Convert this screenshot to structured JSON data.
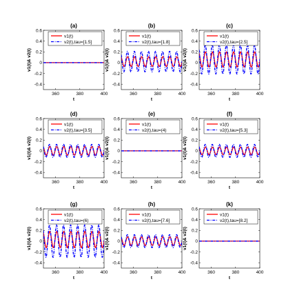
{
  "figure": {
    "colors": {
      "v1": "#ff0000",
      "v2": "#0000ff",
      "axis": "#000000"
    }
  },
  "chart_data": [
    {
      "type": "line",
      "title": "(a)",
      "xlabel": "t",
      "ylabel": "v1(t)& v2(t)",
      "xlim": [
        350,
        400
      ],
      "ylim": [
        -0.5,
        0.6
      ],
      "xticks": [
        360,
        380,
        400
      ],
      "yticks": [
        -0.4,
        -0.2,
        0,
        0.2,
        0.4,
        0.6
      ],
      "legend_position": "top-right",
      "series": [
        {
          "name": "v1(t)",
          "style": "solid",
          "color": "#ff0000",
          "amplitude": 0,
          "offset": 0,
          "period": 5.8
        },
        {
          "name": "v2(t),tau=[1.5]",
          "style": "dash-dot",
          "color": "#0000ff",
          "amplitude": 0,
          "offset": 0,
          "period": 5.8
        }
      ]
    },
    {
      "type": "line",
      "title": "(b)",
      "xlabel": "t",
      "ylabel": "v1(t)& v2(t)",
      "xlim": [
        350,
        400
      ],
      "ylim": [
        -0.5,
        0.6
      ],
      "xticks": [
        360,
        380,
        400
      ],
      "yticks": [
        -0.4,
        -0.2,
        0,
        0.2,
        0.4,
        0.6
      ],
      "legend_position": "top-right",
      "series": [
        {
          "name": "v1(t)",
          "style": "solid",
          "color": "#ff0000",
          "amplitude": 0.09,
          "offset": 0.02,
          "period": 5.8
        },
        {
          "name": "v2(t),tau=[1.8]",
          "style": "dash-dot",
          "color": "#0000ff",
          "amplitude": 0.19,
          "offset": 0.02,
          "period": 5.8
        }
      ]
    },
    {
      "type": "line",
      "title": "(c)",
      "xlabel": "t",
      "ylabel": "v1(t)& v2(t)",
      "xlim": [
        350,
        400
      ],
      "ylim": [
        -0.5,
        0.6
      ],
      "xticks": [
        360,
        380,
        400
      ],
      "yticks": [
        -0.4,
        -0.2,
        0,
        0.2,
        0.4,
        0.6
      ],
      "legend_position": "top-right",
      "series": [
        {
          "name": "v1(t)",
          "style": "solid",
          "color": "#ff0000",
          "amplitude": 0.14,
          "offset": 0.06,
          "period": 5.8
        },
        {
          "name": "v2(t),tau=[2.5]",
          "style": "dash-dot",
          "color": "#0000ff",
          "amplitude": 0.27,
          "offset": 0.06,
          "period": 5.8
        }
      ]
    },
    {
      "type": "line",
      "title": "(d)",
      "xlabel": "t",
      "ylabel": "v1(t)& v2(t)",
      "xlim": [
        350,
        400
      ],
      "ylim": [
        -0.5,
        0.6
      ],
      "xticks": [
        360,
        380,
        400
      ],
      "yticks": [
        -0.4,
        -0.2,
        0,
        0.2,
        0.4,
        0.6
      ],
      "legend_position": "top-right",
      "series": [
        {
          "name": "v1(t)",
          "style": "solid",
          "color": "#ff0000",
          "amplitude": 0.08,
          "offset": 0,
          "period": 5.8
        },
        {
          "name": "v2(t),tau=[3.5]",
          "style": "dash-dot",
          "color": "#0000ff",
          "amplitude": 0.12,
          "offset": 0,
          "period": 5.8
        }
      ]
    },
    {
      "type": "line",
      "title": "(e)",
      "xlabel": "t",
      "ylabel": "v1(t)& v2(t)",
      "xlim": [
        350,
        400
      ],
      "ylim": [
        -0.5,
        0.6
      ],
      "xticks": [
        360,
        380,
        400
      ],
      "yticks": [
        -0.4,
        -0.2,
        0,
        0.2,
        0.4,
        0.6
      ],
      "legend_position": "top-right",
      "series": [
        {
          "name": "v1(t)",
          "style": "solid",
          "color": "#ff0000",
          "amplitude": 0,
          "offset": 0,
          "period": 5.8
        },
        {
          "name": "v2(t),tau=(4)",
          "style": "dash-dot",
          "color": "#0000ff",
          "amplitude": 0,
          "offset": 0,
          "period": 5.8
        }
      ]
    },
    {
      "type": "line",
      "title": "(f)",
      "xlabel": "t",
      "ylabel": "v1(t)& v2(t)",
      "xlim": [
        350,
        400
      ],
      "ylim": [
        -0.5,
        0.6
      ],
      "xticks": [
        360,
        380,
        400
      ],
      "yticks": [
        -0.4,
        -0.2,
        0,
        0.2,
        0.4,
        0.6
      ],
      "legend_position": "top-right",
      "series": [
        {
          "name": "v1(t)",
          "style": "solid",
          "color": "#ff0000",
          "amplitude": 0.07,
          "offset": 0,
          "period": 5.8
        },
        {
          "name": "v2(t),tau=[5.3]",
          "style": "dash-dot",
          "color": "#0000ff",
          "amplitude": 0.12,
          "offset": 0,
          "period": 5.8
        }
      ]
    },
    {
      "type": "line",
      "title": "(g)",
      "xlabel": "t",
      "ylabel": "v1(t)& v2(t)",
      "xlim": [
        350,
        400
      ],
      "ylim": [
        -0.5,
        0.6
      ],
      "xticks": [
        360,
        380,
        400
      ],
      "yticks": [
        -0.4,
        -0.2,
        0,
        0.2,
        0.4,
        0.6
      ],
      "legend_position": "top-right",
      "series": [
        {
          "name": "v1(t)",
          "style": "solid",
          "color": "#ff0000",
          "amplitude": 0.15,
          "offset": 0.03,
          "period": 5.8
        },
        {
          "name": "v2(t),tau=(6)",
          "style": "dash-dot",
          "color": "#0000ff",
          "amplitude": 0.3,
          "offset": 0.0,
          "period": 5.8
        }
      ]
    },
    {
      "type": "line",
      "title": "(h)",
      "xlabel": "t",
      "ylabel": "v1(t)& v2(t)",
      "xlim": [
        350,
        400
      ],
      "ylim": [
        -0.5,
        0.6
      ],
      "xticks": [
        360,
        380,
        400
      ],
      "yticks": [
        -0.4,
        -0.2,
        0,
        0.2,
        0.4,
        0.6
      ],
      "legend_position": "top-right",
      "series": [
        {
          "name": "v1(t)",
          "style": "solid",
          "color": "#ff0000",
          "amplitude": 0.08,
          "offset": 0,
          "period": 5.8
        },
        {
          "name": "v2(t),tau=[7.6]",
          "style": "dash-dot",
          "color": "#0000ff",
          "amplitude": 0.12,
          "offset": 0,
          "period": 5.8
        }
      ]
    },
    {
      "type": "line",
      "title": "(k)",
      "xlabel": "t",
      "ylabel": "v1(t)& v2(t)",
      "xlim": [
        350,
        400
      ],
      "ylim": [
        -0.5,
        0.6
      ],
      "xticks": [
        360,
        380,
        400
      ],
      "yticks": [
        -0.4,
        -0.2,
        0,
        0.2,
        0.4,
        0.6
      ],
      "legend_position": "top-right",
      "series": [
        {
          "name": "v1(t)",
          "style": "solid",
          "color": "#ff0000",
          "amplitude": 0,
          "offset": 0,
          "period": 5.8
        },
        {
          "name": "v2(t),tau=[8.2]",
          "style": "dash-dot",
          "color": "#0000ff",
          "amplitude": 0,
          "offset": 0,
          "period": 5.8
        }
      ]
    }
  ]
}
